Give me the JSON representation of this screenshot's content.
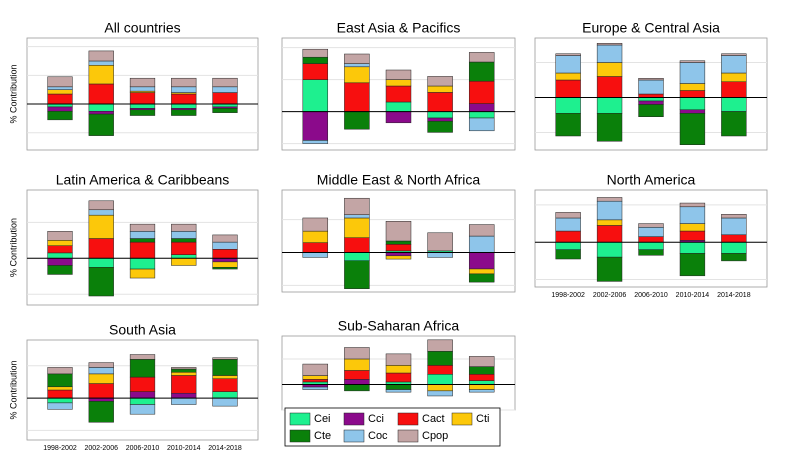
{
  "chart_data": [
    {
      "type": "bar",
      "title": "All countries",
      "y_label": "% Contribution",
      "categories": [
        null,
        null,
        null,
        null,
        null
      ],
      "ylim": [
        -1.6,
        2.3
      ],
      "yticks": [
        -1,
        0,
        1,
        2
      ],
      "grid": true,
      "series": [
        {
          "name": "Cei",
          "color": "#1ef08f",
          "values": [
            -0.1,
            -0.25,
            -0.15,
            -0.15,
            -0.1
          ]
        },
        {
          "name": "Cci",
          "color": "#8b0a8b",
          "values": [
            -0.15,
            -0.1,
            -0.05,
            -0.05,
            -0.05
          ]
        },
        {
          "name": "Cact",
          "color": "#f70f0f",
          "values": [
            0.35,
            0.7,
            0.4,
            0.35,
            0.4
          ]
        },
        {
          "name": "Cti",
          "color": "#fcc80a",
          "values": [
            0.15,
            0.65,
            0.05,
            0.05,
            0
          ]
        },
        {
          "name": "Cte",
          "color": "#0a800a",
          "values": [
            -0.3,
            -0.75,
            -0.2,
            -0.2,
            -0.15
          ]
        },
        {
          "name": "Coc",
          "color": "#8ec5ea",
          "values": [
            0.1,
            0.15,
            0.15,
            0.2,
            0.2
          ]
        },
        {
          "name": "Cpop",
          "color": "#c3a5a5",
          "values": [
            0.35,
            0.35,
            0.3,
            0.3,
            0.3
          ]
        }
      ]
    },
    {
      "type": "bar",
      "title": "East Asia & Pacifics",
      "categories": [
        null,
        null,
        null,
        null,
        null
      ],
      "ylim": [
        -1.2,
        2.3
      ],
      "yticks": [
        -1,
        0,
        1,
        2
      ],
      "grid": true,
      "series": [
        {
          "name": "Cei",
          "color": "#1ef08f",
          "values": [
            1.0,
            0,
            0.3,
            -0.2,
            -0.2
          ]
        },
        {
          "name": "Cci",
          "color": "#8b0a8b",
          "values": [
            -0.9,
            0,
            -0.35,
            -0.1,
            0.25
          ]
        },
        {
          "name": "Cact",
          "color": "#f70f0f",
          "values": [
            0.5,
            0.9,
            0.5,
            0.6,
            0.7
          ]
        },
        {
          "name": "Cti",
          "color": "#fcc80a",
          "values": [
            0,
            0.5,
            0.2,
            0.2,
            0
          ]
        },
        {
          "name": "Cte",
          "color": "#0a800a",
          "values": [
            0.2,
            -0.55,
            0,
            -0.35,
            0.6
          ]
        },
        {
          "name": "Coc",
          "color": "#8ec5ea",
          "values": [
            -0.1,
            0.1,
            0,
            0,
            -0.4
          ]
        },
        {
          "name": "Cpop",
          "color": "#c3a5a5",
          "values": [
            0.25,
            0.3,
            0.3,
            0.3,
            0.3
          ]
        }
      ]
    },
    {
      "type": "bar",
      "title": "Europe & Central Asia",
      "categories": [
        null,
        null,
        null,
        null,
        null
      ],
      "ylim": [
        -1.5,
        1.7
      ],
      "yticks": [
        -1,
        0,
        1
      ],
      "grid": true,
      "series": [
        {
          "name": "Cei",
          "color": "#1ef08f",
          "values": [
            -0.45,
            -0.45,
            -0.1,
            -0.35,
            -0.4
          ]
        },
        {
          "name": "Cci",
          "color": "#8b0a8b",
          "values": [
            0,
            0,
            -0.1,
            -0.1,
            0
          ]
        },
        {
          "name": "Cact",
          "color": "#f70f0f",
          "values": [
            0.5,
            0.6,
            0.1,
            0.2,
            0.45
          ]
        },
        {
          "name": "Cti",
          "color": "#fcc80a",
          "values": [
            0.2,
            0.4,
            0,
            0.2,
            0.25
          ]
        },
        {
          "name": "Cte",
          "color": "#0a800a",
          "values": [
            -0.65,
            -0.8,
            -0.35,
            -0.9,
            -0.7
          ]
        },
        {
          "name": "Coc",
          "color": "#8ec5ea",
          "values": [
            0.5,
            0.5,
            0.4,
            0.6,
            0.5
          ]
        },
        {
          "name": "Cpop",
          "color": "#c3a5a5",
          "values": [
            0.05,
            0.05,
            0.05,
            0.05,
            0.05
          ]
        }
      ]
    },
    {
      "type": "bar",
      "title": "Latin America & Caribbeans",
      "y_label": "% Contribution",
      "categories": [
        null,
        null,
        null,
        null,
        null
      ],
      "ylim": [
        -1.3,
        1.9
      ],
      "yticks": [
        -1,
        0,
        1
      ],
      "grid": true,
      "series": [
        {
          "name": "Cei",
          "color": "#1ef08f",
          "values": [
            0.15,
            -0.25,
            -0.3,
            0.1,
            0
          ]
        },
        {
          "name": "Cci",
          "color": "#8b0a8b",
          "values": [
            -0.2,
            0,
            0,
            0,
            -0.1
          ]
        },
        {
          "name": "Cact",
          "color": "#f70f0f",
          "values": [
            0.2,
            0.55,
            0.45,
            0.35,
            0.25
          ]
        },
        {
          "name": "Cti",
          "color": "#fcc80a",
          "values": [
            0.15,
            0.65,
            -0.25,
            -0.2,
            -0.15
          ]
        },
        {
          "name": "Cte",
          "color": "#0a800a",
          "values": [
            -0.25,
            -0.8,
            0.1,
            0.1,
            -0.05
          ]
        },
        {
          "name": "Coc",
          "color": "#8ec5ea",
          "values": [
            0,
            0.15,
            0.2,
            0.2,
            0.2
          ]
        },
        {
          "name": "Cpop",
          "color": "#c3a5a5",
          "values": [
            0.25,
            0.25,
            0.2,
            0.2,
            0.2
          ]
        }
      ]
    },
    {
      "type": "bar",
      "title": "Middle East & North Africa",
      "categories": [
        null,
        null,
        null,
        null,
        null
      ],
      "ylim": [
        -1.2,
        1.9
      ],
      "yticks": [
        -1,
        0,
        1
      ],
      "grid": true,
      "series": [
        {
          "name": "Cei",
          "color": "#1ef08f",
          "values": [
            0,
            -0.25,
            0.05,
            0.05,
            0
          ]
        },
        {
          "name": "Cci",
          "color": "#8b0a8b",
          "values": [
            0,
            0,
            -0.1,
            0,
            -0.5
          ]
        },
        {
          "name": "Cact",
          "color": "#f70f0f",
          "values": [
            0.3,
            0.45,
            0.2,
            0,
            0
          ]
        },
        {
          "name": "Cti",
          "color": "#fcc80a",
          "values": [
            0.35,
            0.6,
            -0.1,
            0,
            -0.15
          ]
        },
        {
          "name": "Cte",
          "color": "#0a800a",
          "values": [
            0,
            -0.85,
            0.1,
            0,
            -0.25
          ]
        },
        {
          "name": "Coc",
          "color": "#8ec5ea",
          "values": [
            -0.15,
            0.1,
            0,
            -0.15,
            0.5
          ]
        },
        {
          "name": "Cpop",
          "color": "#c3a5a5",
          "values": [
            0.4,
            0.5,
            0.6,
            0.55,
            0.35
          ]
        }
      ]
    },
    {
      "type": "bar",
      "title": "North America",
      "categories": [
        "1998-2002",
        "2002-2006",
        "2006-2010",
        "2010-2014",
        "2014-2018"
      ],
      "ylim": [
        -1.2,
        1.4
      ],
      "yticks": [
        -1,
        0,
        1
      ],
      "grid": true,
      "series": [
        {
          "name": "Cei",
          "color": "#1ef08f",
          "values": [
            -0.2,
            -0.4,
            -0.2,
            -0.3,
            -0.3
          ]
        },
        {
          "name": "Cci",
          "color": "#8b0a8b",
          "values": [
            0,
            0,
            0,
            0.05,
            0
          ]
        },
        {
          "name": "Cact",
          "color": "#f70f0f",
          "values": [
            0.3,
            0.45,
            0.15,
            0.25,
            0.2
          ]
        },
        {
          "name": "Cti",
          "color": "#fcc80a",
          "values": [
            0,
            0.15,
            0,
            0.2,
            0
          ]
        },
        {
          "name": "Cte",
          "color": "#0a800a",
          "values": [
            -0.25,
            -0.65,
            -0.15,
            -0.6,
            -0.2
          ]
        },
        {
          "name": "Coc",
          "color": "#8ec5ea",
          "values": [
            0.35,
            0.5,
            0.25,
            0.45,
            0.45
          ]
        },
        {
          "name": "Cpop",
          "color": "#c3a5a5",
          "values": [
            0.15,
            0.1,
            0.1,
            0.1,
            0.1
          ]
        }
      ]
    },
    {
      "type": "bar",
      "title": "South Asia",
      "y_label": "% Contribution",
      "categories": [
        "1998-2002",
        "2002-2006",
        "2006-2010",
        "2010-2014",
        "2014-2018"
      ],
      "ylim": [
        -1.3,
        1.8
      ],
      "yticks": [
        -1,
        0,
        1
      ],
      "grid": true,
      "series": [
        {
          "name": "Cei",
          "color": "#1ef08f",
          "values": [
            -0.15,
            0,
            -0.2,
            0,
            0.2
          ]
        },
        {
          "name": "Cci",
          "color": "#8b0a8b",
          "values": [
            0,
            -0.1,
            0.2,
            0.15,
            0
          ]
        },
        {
          "name": "Cact",
          "color": "#f70f0f",
          "values": [
            0.25,
            0.45,
            0.45,
            0.55,
            0.4
          ]
        },
        {
          "name": "Cti",
          "color": "#fcc80a",
          "values": [
            0.1,
            0.3,
            0,
            0.1,
            0.1
          ]
        },
        {
          "name": "Cte",
          "color": "#0a800a",
          "values": [
            0.4,
            -0.65,
            0.55,
            0.1,
            0.5
          ]
        },
        {
          "name": "Coc",
          "color": "#8ec5ea",
          "values": [
            -0.2,
            0.2,
            -0.3,
            -0.2,
            -0.25
          ]
        },
        {
          "name": "Cpop",
          "color": "#c3a5a5",
          "values": [
            0.2,
            0.15,
            0.15,
            0.05,
            0.05
          ]
        }
      ]
    },
    {
      "type": "bar",
      "title": "Sub-Saharan Africa",
      "categories": [
        null,
        null,
        null,
        null,
        null
      ],
      "ylim": [
        -1,
        1.9
      ],
      "yticks": [
        -1,
        0,
        1
      ],
      "grid": true,
      "series": [
        {
          "name": "Cei",
          "color": "#1ef08f",
          "values": [
            0.1,
            0,
            0.1,
            0.4,
            0.15
          ]
        },
        {
          "name": "Cci",
          "color": "#8b0a8b",
          "values": [
            -0.1,
            0.2,
            0,
            0,
            0
          ]
        },
        {
          "name": "Cact",
          "color": "#f70f0f",
          "values": [
            0.1,
            0.35,
            0.35,
            0.35,
            0.25
          ]
        },
        {
          "name": "Cti",
          "color": "#fcc80a",
          "values": [
            0.15,
            0.45,
            0.3,
            -0.25,
            -0.2
          ]
        },
        {
          "name": "Cte",
          "color": "#0a800a",
          "values": [
            0,
            -0.25,
            -0.2,
            0.55,
            0.3
          ]
        },
        {
          "name": "Coc",
          "color": "#8ec5ea",
          "values": [
            -0.1,
            0,
            -0.1,
            -0.2,
            -0.1
          ]
        },
        {
          "name": "Cpop",
          "color": "#c3a5a5",
          "values": [
            0.45,
            0.45,
            0.45,
            0.45,
            0.4
          ]
        }
      ]
    }
  ]
}
